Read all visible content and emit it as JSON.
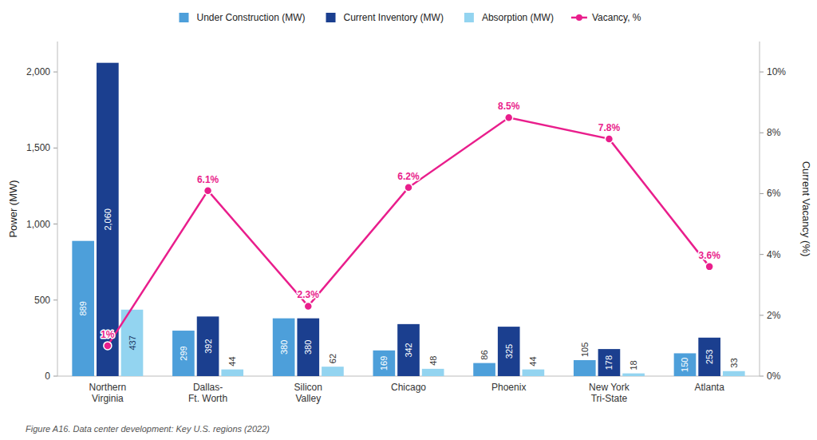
{
  "chart_data": {
    "type": "bar",
    "categories": [
      "Northern\nVirginia",
      "Dallas-\nFt. Worth",
      "Silicon\nValley",
      "Chicago",
      "Phoenix",
      "New York\nTri-State",
      "Atlanta"
    ],
    "series": [
      {
        "name": "Under Construction (MW)",
        "color": "#4d9fda",
        "values": [
          889,
          299,
          380,
          169,
          86,
          105,
          150
        ]
      },
      {
        "name": "Current Inventory (MW)",
        "color": "#1b3f8f",
        "values": [
          2060,
          392,
          380,
          342,
          325,
          178,
          253
        ],
        "value_labels": [
          "2,060",
          "392",
          "380",
          "342",
          "325",
          "178",
          "253"
        ]
      },
      {
        "name": "Absorption (MW)",
        "color": "#93d4f0",
        "values": [
          437,
          44,
          62,
          48,
          44,
          18,
          33
        ]
      },
      {
        "name": "Vacancy, %",
        "type": "line",
        "axis": "y2",
        "color": "#e91e8c",
        "marker": "circle",
        "values": [
          1.0,
          6.1,
          2.3,
          6.2,
          8.5,
          7.8,
          3.6
        ],
        "value_labels": [
          "1%",
          "6.1%",
          "2.3%",
          "6.2%",
          "8.5%",
          "7.8%",
          "3.6%"
        ]
      }
    ],
    "ylabel": "Power (MW)",
    "y2label": "Current Vacancy (%)",
    "ylim": [
      0,
      2200
    ],
    "yticks": [
      0,
      500,
      {
        "value": 1000,
        "label": "1,000"
      },
      {
        "value": 1500,
        "label": "1,500"
      },
      {
        "value": 2000,
        "label": "2,000"
      }
    ],
    "y2lim": [
      0,
      11.0
    ],
    "y2ticks": [
      {
        "value": 0,
        "label": "0%"
      },
      {
        "value": 2,
        "label": "2%"
      },
      {
        "value": 4,
        "label": "4%"
      },
      {
        "value": 6,
        "label": "6%"
      },
      {
        "value": 8,
        "label": "8%"
      },
      {
        "value": 10,
        "label": "10%"
      }
    ],
    "annotations": [
      "Figure A16. Data center development: Key U.S. regions (2022)"
    ],
    "data_labels": true,
    "grid": false,
    "legend": "top"
  }
}
